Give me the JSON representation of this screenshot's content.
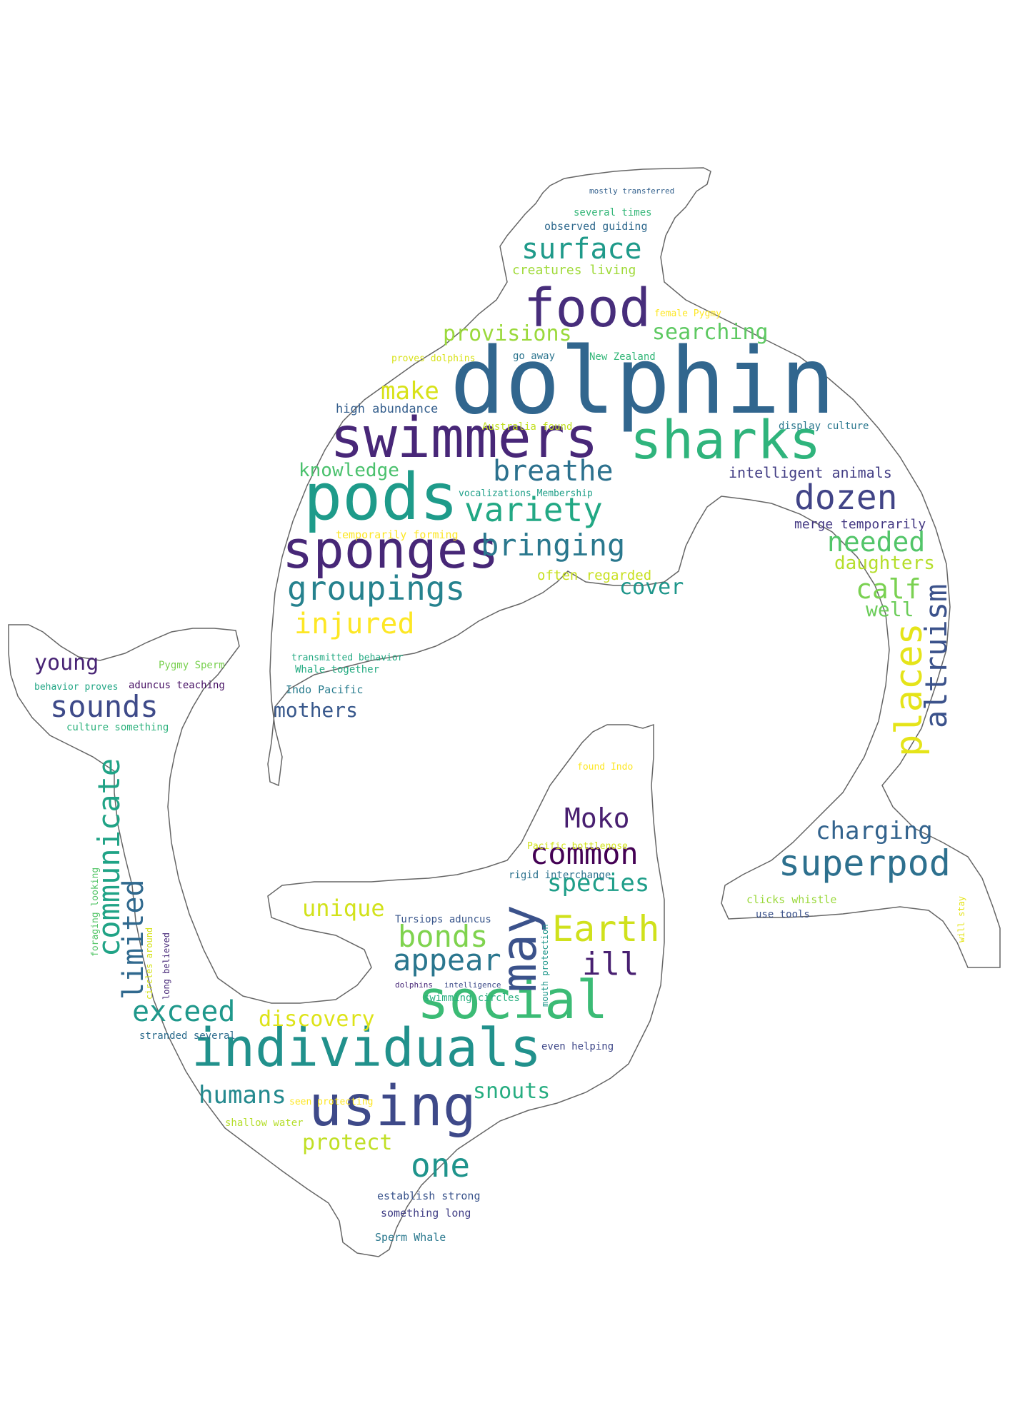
{
  "words": [
    {
      "text": "dolphin",
      "color": "#31668e"
    },
    {
      "text": "swimmers",
      "color": "#482778"
    },
    {
      "text": "sharks",
      "color": "#2fb47c"
    },
    {
      "text": "pods",
      "color": "#1e9b8a"
    },
    {
      "text": "food",
      "color": "#472d7b"
    },
    {
      "text": "sponges",
      "color": "#472777"
    },
    {
      "text": "individuals",
      "color": "#21918c"
    },
    {
      "text": "social",
      "color": "#3bbb75"
    },
    {
      "text": "using",
      "color": "#3e4989"
    },
    {
      "text": "may",
      "color": "#3b528b"
    },
    {
      "text": "surface",
      "color": "#1f9a8a"
    },
    {
      "text": "provisions",
      "color": "#9bd93c"
    },
    {
      "text": "searching",
      "color": "#5ec962"
    },
    {
      "text": "make",
      "color": "#d8e219"
    },
    {
      "text": "breathe",
      "color": "#2c718e"
    },
    {
      "text": "knowledge",
      "color": "#4ac16d"
    },
    {
      "text": "variety",
      "color": "#22a884"
    },
    {
      "text": "dozen",
      "color": "#414487"
    },
    {
      "text": "bringing",
      "color": "#2a788e"
    },
    {
      "text": "needed",
      "color": "#52c569"
    },
    {
      "text": "daughters",
      "color": "#b5de2b"
    },
    {
      "text": "groupings",
      "color": "#26828e"
    },
    {
      "text": "cover",
      "color": "#1f968b"
    },
    {
      "text": "calf",
      "color": "#7ad151"
    },
    {
      "text": "well",
      "color": "#6ccd5a"
    },
    {
      "text": "injured",
      "color": "#fde725"
    },
    {
      "text": "places",
      "color": "#e5e419"
    },
    {
      "text": "altruism",
      "color": "#3b528b"
    },
    {
      "text": "young",
      "color": "#482475"
    },
    {
      "text": "sounds",
      "color": "#3e4a89"
    },
    {
      "text": "mothers",
      "color": "#38588c"
    },
    {
      "text": "communicate",
      "color": "#20a386"
    },
    {
      "text": "limited",
      "color": "#30698e"
    },
    {
      "text": "Moko",
      "color": "#481f70"
    },
    {
      "text": "charging",
      "color": "#33638d"
    },
    {
      "text": "common",
      "color": "#440154"
    },
    {
      "text": "superpod",
      "color": "#2d708e"
    },
    {
      "text": "species",
      "color": "#1f9e89"
    },
    {
      "text": "unique",
      "color": "#d2e21b"
    },
    {
      "text": "Earth",
      "color": "#d0e11c"
    },
    {
      "text": "bonds",
      "color": "#7fd34e"
    },
    {
      "text": "appear",
      "color": "#2a768e"
    },
    {
      "text": "ill",
      "color": "#482071"
    },
    {
      "text": "exceed",
      "color": "#1f988b"
    },
    {
      "text": "discovery",
      "color": "#dde318"
    },
    {
      "text": "humans",
      "color": "#23898e"
    },
    {
      "text": "snouts",
      "color": "#27ad81"
    },
    {
      "text": "protect",
      "color": "#c0df25"
    },
    {
      "text": "one",
      "color": "#1f948c"
    },
    {
      "text": "creatures living",
      "color": "#a0da39"
    },
    {
      "text": "several times",
      "color": "#35b779"
    },
    {
      "text": "observed guiding",
      "color": "#306a8e"
    },
    {
      "text": "mostly transferred",
      "color": "#34618d"
    },
    {
      "text": "female Pygmy",
      "color": "#fde725"
    },
    {
      "text": "go away",
      "color": "#2b748e"
    },
    {
      "text": "New Zealand",
      "color": "#35b779"
    },
    {
      "text": "proves dolphins",
      "color": "#d8e219"
    },
    {
      "text": "high abundance",
      "color": "#355f8d"
    },
    {
      "text": "Australia found",
      "color": "#c2df23"
    },
    {
      "text": "display culture",
      "color": "#2a778e"
    },
    {
      "text": "intelligent animals",
      "color": "#433e85"
    },
    {
      "text": "vocalizations Membership",
      "color": "#1f9f88"
    },
    {
      "text": "merge temporarily",
      "color": "#443983"
    },
    {
      "text": "temporarily forming",
      "color": "#fde725"
    },
    {
      "text": "often regarded",
      "color": "#c8e020"
    },
    {
      "text": "transmitted behavior",
      "color": "#24aa83"
    },
    {
      "text": "Whale together",
      "color": "#25ab82"
    },
    {
      "text": "Indo Pacific",
      "color": "#287c8e"
    },
    {
      "text": "Pygmy Sperm",
      "color": "#7ad151"
    },
    {
      "text": "behavior proves",
      "color": "#21a685"
    },
    {
      "text": "aduncus teaching",
      "color": "#471164"
    },
    {
      "text": "culture something",
      "color": "#2db27d"
    },
    {
      "text": "found Indo",
      "color": "#fde725"
    },
    {
      "text": "Pacific bottlenose",
      "color": "#d2e21b"
    },
    {
      "text": "rigid interchange",
      "color": "#2c728e"
    },
    {
      "text": "clicks whistle",
      "color": "#9bd93c"
    },
    {
      "text": "use tools",
      "color": "#3b528b"
    },
    {
      "text": "will stay",
      "color": "#e5e419"
    },
    {
      "text": "Tursiops aduncus",
      "color": "#39568c"
    },
    {
      "text": "foraging looking",
      "color": "#54c568"
    },
    {
      "text": "circles around",
      "color": "#d5e21a"
    },
    {
      "text": "long believed",
      "color": "#482979"
    },
    {
      "text": "mouth protection",
      "color": "#1f978b"
    },
    {
      "text": "dolphins",
      "color": "#482878"
    },
    {
      "text": "intelligence",
      "color": "#3e4c8a"
    },
    {
      "text": "swimming circles",
      "color": "#29af7f"
    },
    {
      "text": "stranded several",
      "color": "#2e6d8e"
    },
    {
      "text": "even helping",
      "color": "#3f4889"
    },
    {
      "text": "seen protecting",
      "color": "#fde725"
    },
    {
      "text": "shallow water",
      "color": "#b5de2b"
    },
    {
      "text": "establish strong",
      "color": "#3a548c"
    },
    {
      "text": "something long",
      "color": "#424086"
    },
    {
      "text": "Sperm Whale",
      "color": "#2a788e"
    }
  ]
}
